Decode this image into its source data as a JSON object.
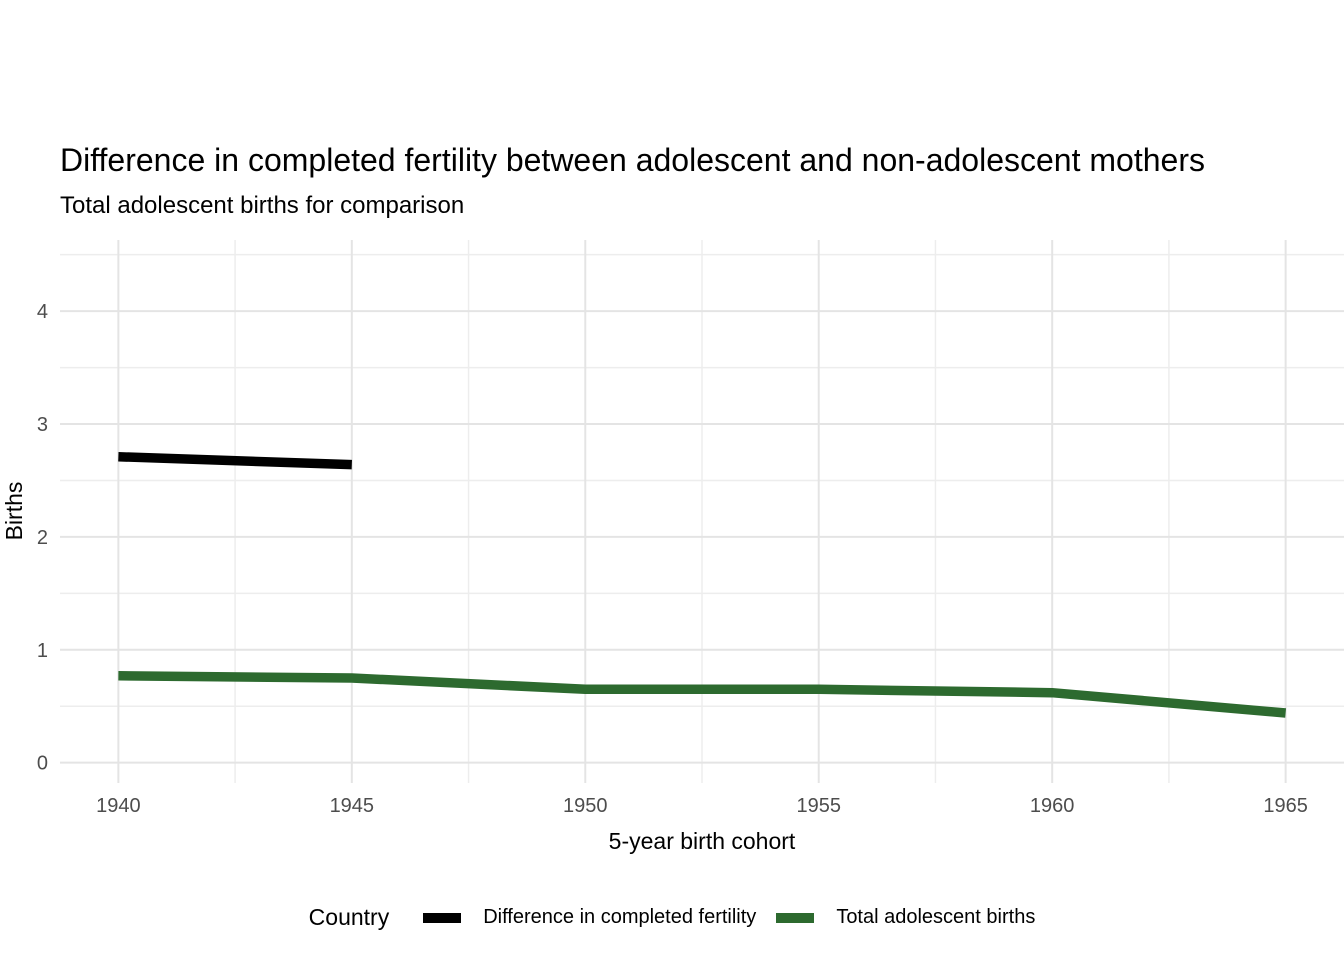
{
  "chart_data": {
    "type": "line",
    "title": "Difference in completed fertility between adolescent and non-adolescent mothers",
    "subtitle": "Total adolescent births for comparison",
    "xlabel": "5-year birth cohort",
    "ylabel": "Births",
    "legend_title": "Country",
    "legend_position": "bottom",
    "grid": "major and minor gridlines on, white panel background, no axis tick marks",
    "x_domain": [
      1938.75,
      1966.25
    ],
    "y_domain": [
      -0.18,
      4.63
    ],
    "x_ticks": [
      1940,
      1945,
      1950,
      1955,
      1960,
      1965
    ],
    "y_ticks": [
      0,
      1,
      2,
      3,
      4
    ],
    "x_minor": [
      1942.5,
      1947.5,
      1952.5,
      1957.5,
      1962.5
    ],
    "y_minor": [
      0.5,
      1.5,
      2.5,
      3.5,
      4.5
    ],
    "series": [
      {
        "name": "Difference in completed fertility",
        "color": "#000000",
        "x": [
          1940,
          1945
        ],
        "values": [
          2.71,
          2.64
        ]
      },
      {
        "name": "Total adolescent births",
        "color": "#2d6a2f",
        "x": [
          1940,
          1945,
          1950,
          1955,
          1960,
          1965
        ],
        "values": [
          0.77,
          0.75,
          0.65,
          0.65,
          0.62,
          0.44
        ]
      }
    ],
    "colors": {
      "tick_label": "#4d4d4d",
      "grid_major": "#e4e4e4",
      "grid_minor": "#ededed",
      "background": "#ffffff",
      "text": "#000000"
    }
  }
}
